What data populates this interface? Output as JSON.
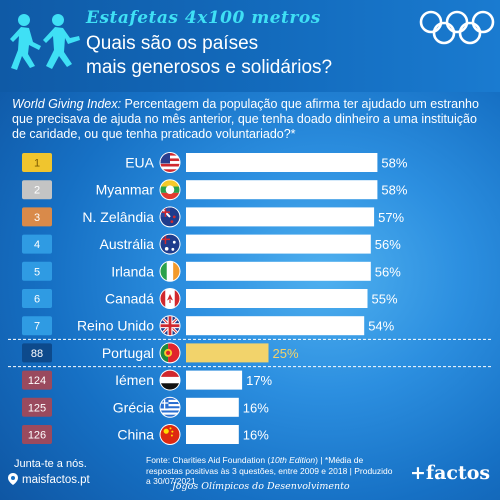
{
  "header": {
    "series_title": "Estafetas 4x100 metros",
    "title_line1": "Quais são os países",
    "title_line2": "mais generosos e solidários?"
  },
  "subtitle": {
    "lead": "World Giving Index:",
    "text": " Percentagem da população que afirma ter ajudado um estranho que precisava de ajuda no mês anterior, que tenha doado dinheiro a uma instituição de caridade, ou que tenha praticado voluntariado?*"
  },
  "chart_data": {
    "type": "bar",
    "orientation": "horizontal",
    "categories": [
      "EUA",
      "Myanmar",
      "N. Zelândia",
      "Austrália",
      "Irlanda",
      "Canadá",
      "Reino Unido",
      "Portugal",
      "Iémen",
      "Grécia",
      "China"
    ],
    "ranks": [
      "1",
      "2",
      "3",
      "4",
      "5",
      "6",
      "7",
      "88",
      "124",
      "125",
      "126"
    ],
    "values": [
      58,
      58,
      57,
      56,
      56,
      55,
      54,
      25,
      17,
      16,
      16
    ],
    "value_labels": [
      "58%",
      "58%",
      "57%",
      "56%",
      "56%",
      "55%",
      "54%",
      "25%",
      "17%",
      "16%",
      "16%"
    ],
    "flags": [
      "flag-usa",
      "flag-myanmar",
      "flag-new-zealand",
      "flag-australia",
      "flag-ireland",
      "flag-canada",
      "flag-uk",
      "flag-portugal",
      "flag-yemen",
      "flag-greece",
      "flag-china"
    ],
    "highlight": "Portugal",
    "rank_colors": [
      "#f0c52e",
      "#c4c4c4",
      "#d98a4a",
      "#2f9be3",
      "#2f9be3",
      "#2f9be3",
      "#2f9be3",
      "#0d4a8c",
      "#9a4a5e",
      "#9a4a5e",
      "#9a4a5e"
    ],
    "bar_color": "#ffffff",
    "highlight_color": "#f2d36b",
    "xlim": [
      0,
      100
    ]
  },
  "footer": {
    "join": "Junta-te a nós.",
    "site": "maisfactos.pt",
    "source_prefix": "Fonte: Charities Aid Foundation (",
    "source_italic": "10th Edition",
    "source_suffix": ") | *Média de respostas positivas às 3 questões, entre 2009 e 2018 | Produzido a 30/07/2021",
    "games": "Jogos Olímpicos do Desenvolvimento",
    "brand": "+factos"
  },
  "icons": {
    "runners": "relay-runners-icon",
    "rings": "olympic-rings-icon",
    "site": "pin-icon"
  }
}
